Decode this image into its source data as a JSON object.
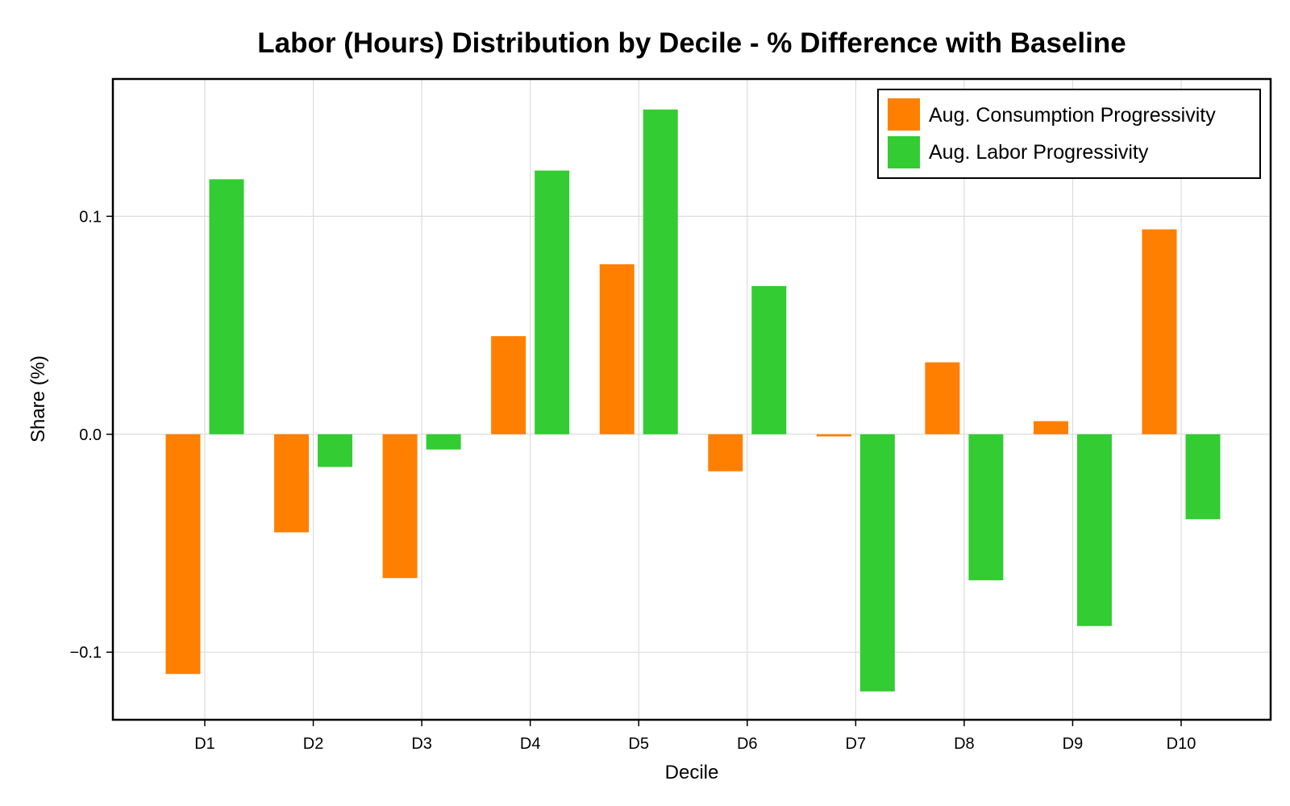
{
  "chart_data": {
    "type": "bar",
    "title": "Labor (Hours) Distribution by Decile - % Difference with Baseline",
    "xlabel": "Decile",
    "ylabel": "Share (%)",
    "categories": [
      "D1",
      "D2",
      "D3",
      "D4",
      "D5",
      "D6",
      "D7",
      "D8",
      "D9",
      "D10"
    ],
    "series": [
      {
        "name": "Aug. Consumption Progressivity",
        "color": "#ff7f00",
        "values": [
          -0.11,
          -0.045,
          -0.066,
          0.045,
          0.078,
          -0.017,
          -0.001,
          0.033,
          0.006,
          0.094
        ]
      },
      {
        "name": "Aug. Labor Progressivity",
        "color": "#33cc33",
        "values": [
          0.117,
          -0.015,
          -0.007,
          0.121,
          0.149,
          0.068,
          -0.118,
          -0.067,
          -0.088,
          -0.039
        ]
      }
    ],
    "yticks": [
      -0.1,
      0.0,
      0.1
    ],
    "ytick_labels": [
      "−0.1",
      "0.0",
      "0.1"
    ],
    "ylim": [
      -0.131,
      0.163
    ],
    "grid": true,
    "legend_position": "top-right"
  }
}
